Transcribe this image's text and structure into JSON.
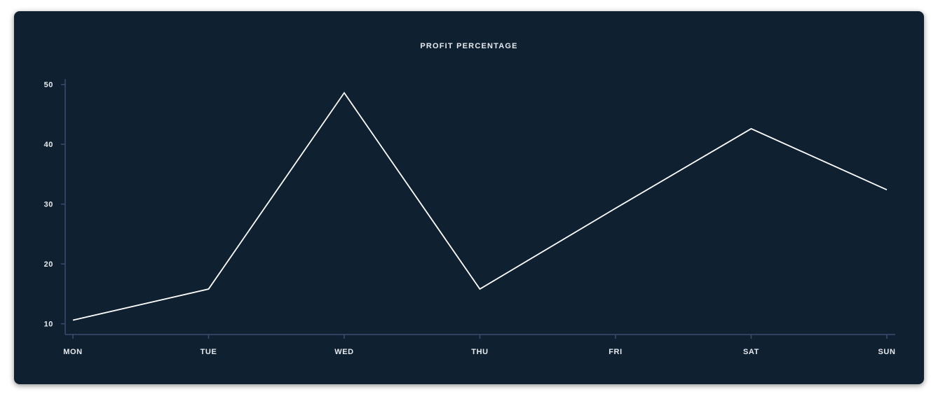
{
  "chart_data": {
    "type": "line",
    "title": "PROFIT PERCENTAGE",
    "categories": [
      "MON",
      "TUE",
      "WED",
      "THU",
      "FRI",
      "SAT",
      "SUN"
    ],
    "series": [
      {
        "values": [
          10.6,
          15.8,
          48.6,
          15.8,
          29.3,
          42.6,
          32.4
        ]
      }
    ],
    "yticks": [
      10,
      20,
      30,
      40,
      50
    ],
    "ylim": [
      8.2,
      50.9
    ],
    "grid": false,
    "colors": {
      "background": "#0f2030",
      "axis": "#3c4a6e",
      "line": "#ffffff",
      "text": "#e6e9ee"
    }
  }
}
